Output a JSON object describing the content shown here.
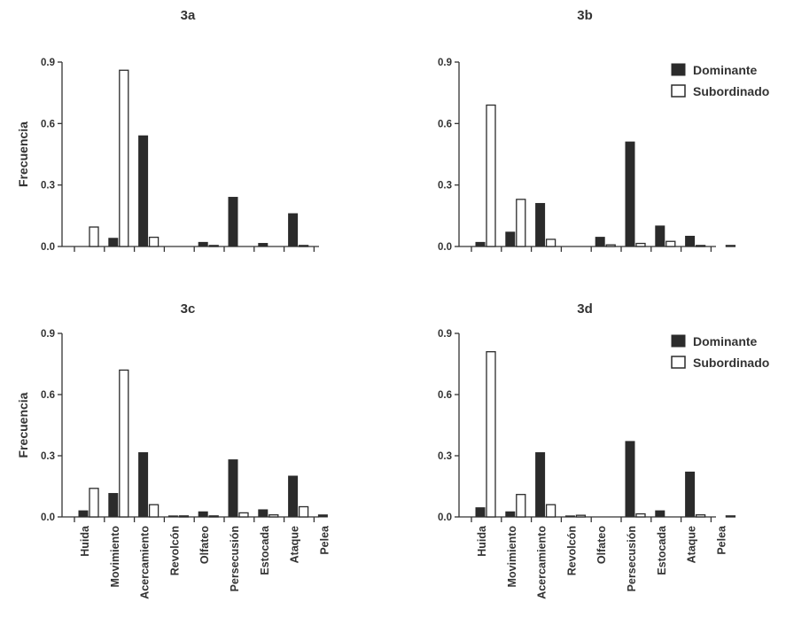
{
  "legend": {
    "dominant": "Dominante",
    "subordinate": "Subordinado"
  },
  "colors": {
    "dominant": "#2b2b2b",
    "subordinate": "#ffffff",
    "axis": "#333333",
    "text": "#333333"
  },
  "chart_data": [
    {
      "type": "bar",
      "title": "3a",
      "ylabel": "Frecuencia",
      "ylim": [
        0,
        0.9
      ],
      "yticks": [
        "0.0",
        "0.3",
        "0.6",
        "0.9"
      ],
      "categories": [
        "Huida",
        "Movimiento",
        "Acercamiento",
        "Revolcón",
        "Olfateo",
        "Persecusión",
        "Estocada",
        "Ataque",
        "Pelea"
      ],
      "series": [
        {
          "name": "Dominante",
          "values": [
            0.0,
            0.04,
            0.54,
            0.0,
            0.02,
            0.24,
            0.015,
            0.16,
            0.0
          ]
        },
        {
          "name": "Subordinado",
          "values": [
            0.095,
            0.86,
            0.045,
            0.0,
            0.005,
            0.0,
            0.0,
            0.005,
            0.0
          ]
        }
      ],
      "legend": false
    },
    {
      "type": "bar",
      "title": "3b",
      "ylabel": "",
      "ylim": [
        0,
        0.9
      ],
      "yticks": [
        "0.0",
        "0.3",
        "0.6",
        "0.9"
      ],
      "categories": [
        "Huida",
        "Movimiento",
        "Acercamiento",
        "Revolcón",
        "Olfateo",
        "Persecusión",
        "Estocada",
        "Ataque",
        "Pelea"
      ],
      "series": [
        {
          "name": "Dominante",
          "values": [
            0.02,
            0.07,
            0.21,
            0.0,
            0.045,
            0.51,
            0.1,
            0.05,
            0.0
          ]
        },
        {
          "name": "Subordinado",
          "values": [
            0.69,
            0.23,
            0.035,
            0.0,
            0.008,
            0.015,
            0.025,
            0.005,
            0.005
          ]
        }
      ],
      "legend": true
    },
    {
      "type": "bar",
      "title": "3c",
      "ylabel": "Frecuencia",
      "ylim": [
        0,
        0.9
      ],
      "yticks": [
        "0.0",
        "0.3",
        "0.6",
        "0.9"
      ],
      "categories": [
        "Huida",
        "Movimiento",
        "Acercamiento",
        "Revolcón",
        "Olfateo",
        "Persecusión",
        "Estocada",
        "Ataque",
        "Pelea"
      ],
      "series": [
        {
          "name": "Dominante",
          "values": [
            0.03,
            0.115,
            0.315,
            0.005,
            0.025,
            0.28,
            0.035,
            0.2,
            0.01
          ]
        },
        {
          "name": "Subordinado",
          "values": [
            0.14,
            0.72,
            0.06,
            0.005,
            0.005,
            0.02,
            0.01,
            0.05,
            0.0
          ]
        }
      ],
      "legend": false
    },
    {
      "type": "bar",
      "title": "3d",
      "ylabel": "",
      "ylim": [
        0,
        0.9
      ],
      "yticks": [
        "0.0",
        "0.3",
        "0.6",
        "0.9"
      ],
      "categories": [
        "Huida",
        "Movimiento",
        "Acercamiento",
        "Revolcón",
        "Olfateo",
        "Persecusión",
        "Estocada",
        "Ataque",
        "Pelea"
      ],
      "series": [
        {
          "name": "Dominante",
          "values": [
            0.045,
            0.025,
            0.315,
            0.005,
            0.0,
            0.37,
            0.03,
            0.22,
            0.0
          ]
        },
        {
          "name": "Subordinado",
          "values": [
            0.81,
            0.11,
            0.06,
            0.008,
            0.0,
            0.015,
            0.0,
            0.01,
            0.005
          ]
        }
      ],
      "legend": true
    }
  ]
}
